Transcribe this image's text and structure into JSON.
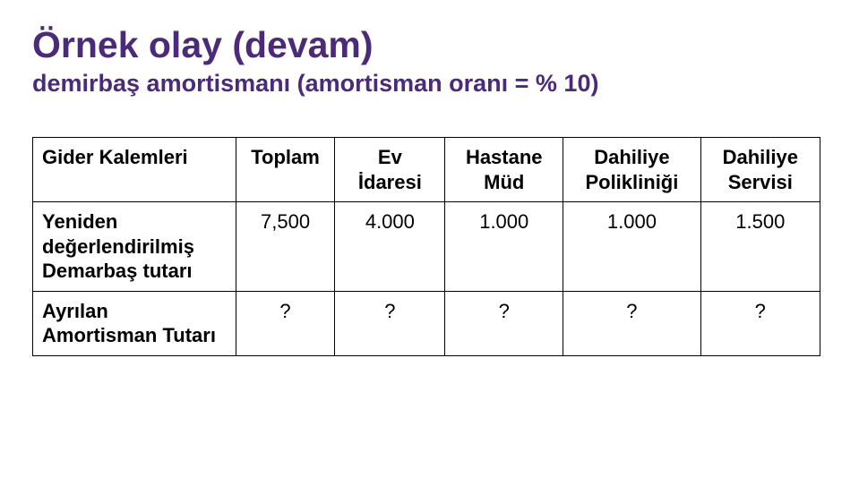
{
  "title": {
    "heading": "Örnek olay (devam)",
    "sub": "demirbaş amortismanı (amortisman oranı = % 10)"
  },
  "table": {
    "headers": {
      "rowhead": "Gider Kalemleri",
      "toplam": "Toplam",
      "ev_idaresi": "Ev İdaresi",
      "hastane_mud": "Hastane Müd",
      "dahiliye_poli": "Dahiliye Polikliniği",
      "dahiliye_servisi": "Dahiliye Servisi"
    },
    "rows": {
      "row1": {
        "label": "Yeniden değerlendirilmiş Demarbaş tutarı",
        "toplam": "7,500",
        "ev_idaresi": "4.000",
        "hastane_mud": "1.000",
        "dahiliye_poli": "1.000",
        "dahiliye_servisi": "1.500"
      },
      "row2": {
        "label": "Ayrılan Amortisman Tutarı",
        "toplam": "?",
        "ev_idaresi": "?",
        "hastane_mud": "?",
        "dahiliye_poli": "?",
        "dahiliye_servisi": "?"
      }
    }
  },
  "colors": {
    "title": "#4b2a7a",
    "border": "#000000",
    "background": "#ffffff",
    "text": "#000000"
  }
}
